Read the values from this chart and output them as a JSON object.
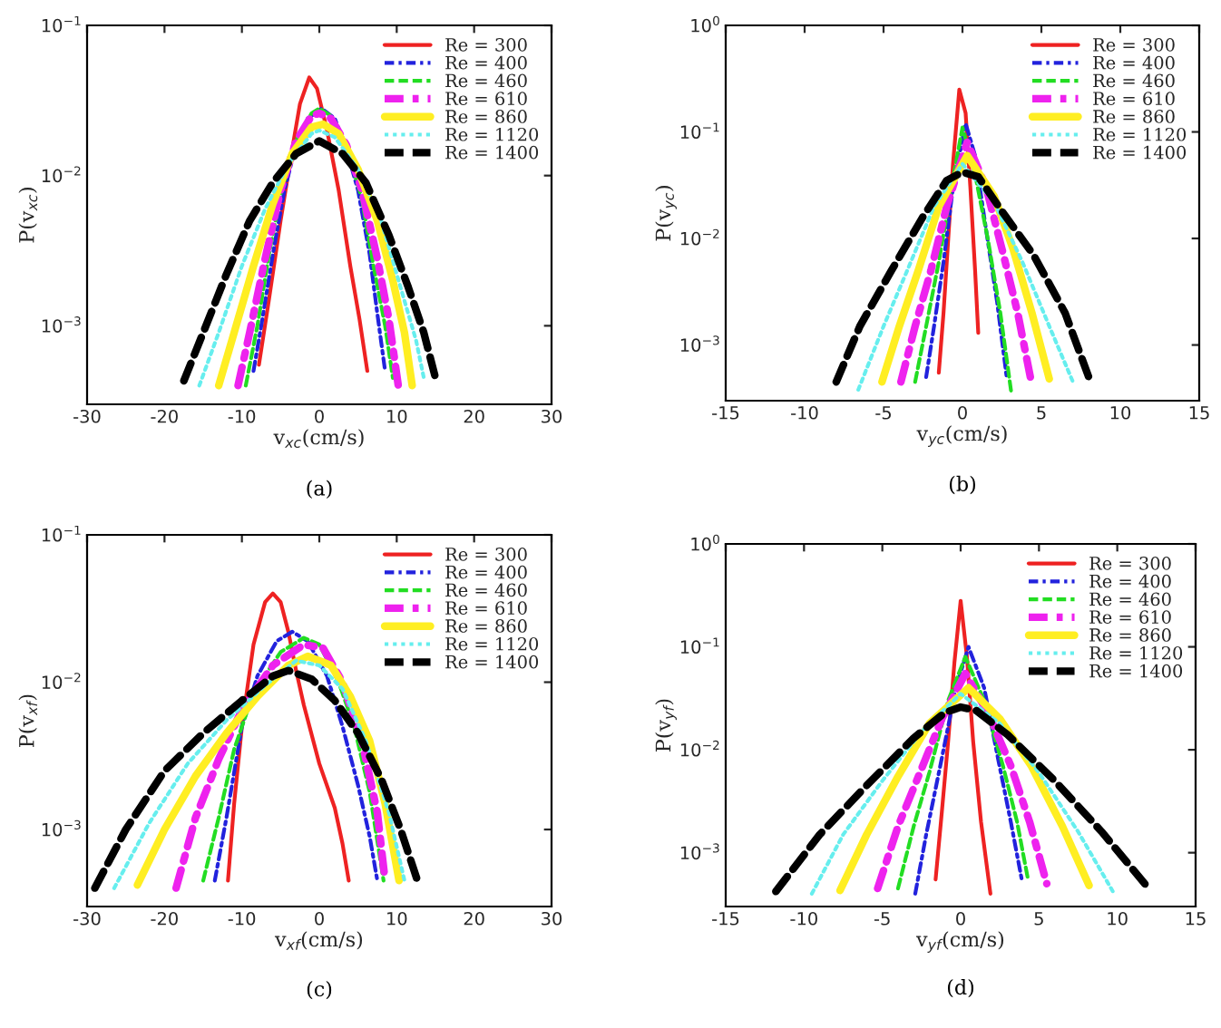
{
  "chart_data": [
    {
      "type": "line",
      "xlabel": "v$_{xc}$(cm/s)",
      "ylabel": "P(v$_{xc}$)",
      "annotations": [
        "(a)"
      ],
      "log": "y",
      "legend": "top right",
      "grid": false,
      "xlim": [
        -30,
        30
      ],
      "xticks": [
        -30,
        -20,
        -10,
        0,
        10,
        20,
        30
      ],
      "ylim": [
        0.0003,
        0.1
      ],
      "yticks": [
        {
          "value": 0.001,
          "label": "10$^{−3}$"
        },
        {
          "value": 0.01,
          "label": "10$^{−2}$"
        },
        {
          "value": 0.1,
          "label": "10$^{−1}$"
        }
      ],
      "series": [
        {
          "name": "Re = 300",
          "color": "#ee2222",
          "line_style": "solid",
          "x": [
            -7.8,
            -6.5,
            -5,
            -3.5,
            -2.5,
            -1.3,
            -0.3,
            1,
            2.5,
            4,
            5.2,
            6.2
          ],
          "values": [
            0.00055,
            0.0015,
            0.005,
            0.015,
            0.03,
            0.045,
            0.038,
            0.02,
            0.008,
            0.0025,
            0.0011,
            0.0005
          ]
        },
        {
          "name": "Re = 400",
          "color": "#2222dd",
          "line_style": "dashdot",
          "x": [
            -8.5,
            -7.5,
            -6,
            -4.5,
            -3,
            -1.5,
            0.3,
            2,
            3.5,
            5,
            6.5,
            7.5,
            8.5
          ],
          "values": [
            0.0005,
            0.001,
            0.003,
            0.008,
            0.016,
            0.024,
            0.028,
            0.024,
            0.015,
            0.008,
            0.003,
            0.0012,
            0.0005
          ]
        },
        {
          "name": "Re = 460",
          "color": "#22dd22",
          "line_style": "dashed",
          "x": [
            -9.5,
            -8,
            -6.5,
            -5,
            -3,
            -1,
            0,
            1.5,
            3.5,
            5.5,
            7,
            8.5,
            9.5
          ],
          "values": [
            0.0004,
            0.001,
            0.003,
            0.0075,
            0.017,
            0.026,
            0.028,
            0.025,
            0.016,
            0.007,
            0.0025,
            0.001,
            0.00045
          ]
        },
        {
          "name": "Re = 610",
          "color": "#ee22ee",
          "line_style": "dashdot",
          "x": [
            -10.5,
            -9,
            -7,
            -5,
            -3,
            -1,
            0,
            1.5,
            3.5,
            5.5,
            7.5,
            9,
            10.2
          ],
          "values": [
            0.0004,
            0.0009,
            0.0028,
            0.008,
            0.017,
            0.025,
            0.026,
            0.024,
            0.016,
            0.008,
            0.0028,
            0.0011,
            0.0004
          ]
        },
        {
          "name": "Re = 860",
          "color": "#ffee22",
          "line_style": "solid",
          "x": [
            -13,
            -11,
            -8.5,
            -6,
            -3.5,
            -1,
            0.5,
            2.5,
            5,
            7.5,
            9.5,
            11,
            12
          ],
          "values": [
            0.0004,
            0.0009,
            0.0025,
            0.0065,
            0.014,
            0.021,
            0.022,
            0.019,
            0.011,
            0.005,
            0.002,
            0.0009,
            0.0004
          ]
        },
        {
          "name": "Re = 1120",
          "color": "#66eeee",
          "line_style": "dotted",
          "x": [
            -15.5,
            -13,
            -10,
            -7,
            -4,
            -1,
            0,
            2,
            5,
            8,
            10.5,
            12.5,
            13.5
          ],
          "values": [
            0.0004,
            0.0009,
            0.0025,
            0.006,
            0.012,
            0.019,
            0.02,
            0.018,
            0.011,
            0.005,
            0.0018,
            0.0008,
            0.00045
          ]
        },
        {
          "name": "Re = 1400",
          "color": "#000000",
          "line_style": "dashed",
          "x": [
            -17.5,
            -15,
            -12,
            -9,
            -6,
            -3,
            0,
            3,
            6,
            9,
            11.5,
            13.5,
            15
          ],
          "values": [
            0.00043,
            0.0009,
            0.0022,
            0.005,
            0.009,
            0.014,
            0.017,
            0.014,
            0.009,
            0.004,
            0.0018,
            0.0009,
            0.00045
          ]
        }
      ]
    },
    {
      "type": "line",
      "xlabel": "v$_{yc}$(cm/s)",
      "ylabel": "P(v$_{yc}$)",
      "annotations": [
        "(b)"
      ],
      "log": "y",
      "legend": "top right",
      "grid": false,
      "xlim": [
        -15,
        15
      ],
      "xticks": [
        -15,
        -10,
        -5,
        0,
        5,
        10,
        15
      ],
      "ylim": [
        0.0003,
        1
      ],
      "yticks": [
        {
          "value": 0.001,
          "label": "10$^{−3}$"
        },
        {
          "value": 0.01,
          "label": "10$^{−2}$"
        },
        {
          "value": 0.1,
          "label": "10$^{−1}$"
        },
        {
          "value": 1,
          "label": "10$^{0}$"
        }
      ],
      "series": [
        {
          "name": "Re = 300",
          "color": "#ee2222",
          "line_style": "solid",
          "x": [
            -1.5,
            -1.2,
            -0.9,
            -0.6,
            -0.2,
            0.2,
            0.5,
            0.8,
            1.0
          ],
          "values": [
            0.00055,
            0.002,
            0.01,
            0.05,
            0.25,
            0.15,
            0.03,
            0.005,
            0.0013
          ]
        },
        {
          "name": "Re = 400",
          "color": "#2222dd",
          "line_style": "dashdot",
          "x": [
            -2.3,
            -1.8,
            -1.2,
            -0.6,
            0.2,
            0.8,
            1.5,
            2.2,
            2.8
          ],
          "values": [
            0.0005,
            0.0015,
            0.006,
            0.03,
            0.12,
            0.06,
            0.012,
            0.0025,
            0.0005
          ]
        },
        {
          "name": "Re = 460",
          "color": "#22dd22",
          "line_style": "dashed",
          "x": [
            -3,
            -2.3,
            -1.5,
            -0.7,
            0,
            0.8,
            1.6,
            2.4,
            3.1
          ],
          "values": [
            0.00045,
            0.0015,
            0.006,
            0.03,
            0.11,
            0.04,
            0.01,
            0.002,
            0.00035
          ]
        },
        {
          "name": "Re = 610",
          "color": "#ee22ee",
          "line_style": "dashdot",
          "x": [
            -3.9,
            -3,
            -2,
            -1,
            0.3,
            1.5,
            2.5,
            3.5,
            4.3
          ],
          "values": [
            0.00045,
            0.0015,
            0.005,
            0.02,
            0.08,
            0.03,
            0.008,
            0.002,
            0.0005
          ]
        },
        {
          "name": "Re = 860",
          "color": "#ffee22",
          "line_style": "solid",
          "x": [
            -5.1,
            -4,
            -2.8,
            -1.5,
            0.3,
            2,
            3.2,
            4.4,
            5.5
          ],
          "values": [
            0.00045,
            0.0015,
            0.005,
            0.02,
            0.06,
            0.025,
            0.008,
            0.002,
            0.00048
          ]
        },
        {
          "name": "Re = 1120",
          "color": "#66eeee",
          "line_style": "dotted",
          "x": [
            -6.6,
            -5,
            -3.5,
            -1.8,
            0,
            2,
            3.8,
            5.5,
            7
          ],
          "values": [
            0.00038,
            0.0015,
            0.005,
            0.02,
            0.05,
            0.022,
            0.006,
            0.0015,
            0.00045
          ]
        },
        {
          "name": "Re = 1400",
          "color": "#000000",
          "line_style": "dashed",
          "x": [
            -8,
            -6.5,
            -4.5,
            -2.5,
            -1,
            0,
            1,
            2.5,
            4.5,
            6.5,
            8
          ],
          "values": [
            0.00045,
            0.0015,
            0.005,
            0.016,
            0.035,
            0.042,
            0.038,
            0.018,
            0.007,
            0.002,
            0.0005
          ]
        }
      ]
    },
    {
      "type": "line",
      "xlabel": "v$_{xf}$(cm/s)",
      "ylabel": "P(v$_{xf}$)",
      "annotations": [
        "(c)"
      ],
      "log": "y",
      "legend": "top right",
      "grid": false,
      "xlim": [
        -30,
        30
      ],
      "xticks": [
        -30,
        -20,
        -10,
        0,
        10,
        20,
        30
      ],
      "ylim": [
        0.0003,
        0.1
      ],
      "yticks": [
        {
          "value": 0.001,
          "label": "10$^{−3}$"
        },
        {
          "value": 0.01,
          "label": "10$^{−2}$"
        },
        {
          "value": 0.1,
          "label": "10$^{−1}$"
        }
      ],
      "series": [
        {
          "name": "Re = 300",
          "color": "#ee2222",
          "line_style": "solid",
          "x": [
            -11.8,
            -11,
            -10,
            -8.5,
            -7,
            -6,
            -5,
            -4,
            -3,
            -2,
            0,
            2,
            3,
            3.8
          ],
          "values": [
            0.00045,
            0.0015,
            0.005,
            0.018,
            0.035,
            0.04,
            0.035,
            0.022,
            0.012,
            0.007,
            0.0028,
            0.0014,
            0.0008,
            0.00045
          ]
        },
        {
          "name": "Re = 400",
          "color": "#2222dd",
          "line_style": "dashdot",
          "x": [
            -13.5,
            -12,
            -10,
            -8,
            -5.5,
            -3.5,
            -1.5,
            1,
            3,
            5,
            6.5,
            7.5
          ],
          "values": [
            0.00045,
            0.0012,
            0.005,
            0.011,
            0.019,
            0.022,
            0.019,
            0.011,
            0.005,
            0.002,
            0.0009,
            0.00045
          ]
        },
        {
          "name": "Re = 460",
          "color": "#22dd22",
          "line_style": "dashed",
          "x": [
            -15,
            -13,
            -11,
            -8.5,
            -5,
            -2,
            0,
            2.5,
            4.5,
            6.5,
            8.3
          ],
          "values": [
            0.00045,
            0.0012,
            0.0035,
            0.0085,
            0.016,
            0.02,
            0.018,
            0.01,
            0.005,
            0.0018,
            0.00045
          ]
        },
        {
          "name": "Re = 610",
          "color": "#ee22ee",
          "line_style": "dashdot",
          "x": [
            -18.5,
            -16,
            -13,
            -10,
            -6,
            -2,
            0.5,
            3,
            5.5,
            7.5,
            8.5
          ],
          "values": [
            0.0004,
            0.0012,
            0.003,
            0.0065,
            0.013,
            0.018,
            0.017,
            0.01,
            0.004,
            0.0013,
            0.00045
          ]
        },
        {
          "name": "Re = 860",
          "color": "#ffee22",
          "line_style": "solid",
          "x": [
            -23.5,
            -20,
            -16,
            -12,
            -8,
            -4,
            -1.5,
            1.5,
            4,
            6.5,
            8.5,
            10.3
          ],
          "values": [
            0.00042,
            0.001,
            0.0023,
            0.0045,
            0.008,
            0.013,
            0.015,
            0.013,
            0.008,
            0.004,
            0.0015,
            0.00045
          ]
        },
        {
          "name": "Re = 1120",
          "color": "#66eeee",
          "line_style": "dotted",
          "x": [
            -26.5,
            -22,
            -17,
            -12,
            -7,
            -3,
            0,
            3,
            6,
            9,
            11
          ],
          "values": [
            0.0004,
            0.0011,
            0.0028,
            0.0055,
            0.0095,
            0.014,
            0.013,
            0.009,
            0.004,
            0.0013,
            0.00045
          ]
        },
        {
          "name": "Re = 1400",
          "color": "#000000",
          "line_style": "dashed",
          "x": [
            -29,
            -25,
            -20,
            -15,
            -10,
            -6,
            -4,
            -1,
            2,
            5,
            8,
            10.5,
            12.8
          ],
          "values": [
            0.0004,
            0.001,
            0.0025,
            0.0045,
            0.0075,
            0.011,
            0.012,
            0.0105,
            0.0075,
            0.0045,
            0.0022,
            0.001,
            0.00043
          ]
        }
      ]
    },
    {
      "type": "line",
      "xlabel": "v$_{yf}$(cm/s)",
      "ylabel": "P(v$_{yf}$)",
      "annotations": [
        "(d)"
      ],
      "log": "y",
      "legend": "top right",
      "grid": false,
      "xlim": [
        -15,
        15
      ],
      "xticks": [
        -15,
        -10,
        -5,
        0,
        5,
        10,
        15
      ],
      "ylim": [
        0.0003,
        1
      ],
      "yticks": [
        {
          "value": 0.001,
          "label": "10$^{−3}$"
        },
        {
          "value": 0.01,
          "label": "10$^{−2}$"
        },
        {
          "value": 0.1,
          "label": "10$^{−1}$"
        },
        {
          "value": 1,
          "label": "10$^{0}$"
        }
      ],
      "series": [
        {
          "name": "Re = 300",
          "color": "#ee2222",
          "line_style": "solid",
          "x": [
            -1.6,
            -1.2,
            -0.8,
            -0.4,
            0,
            0.4,
            0.8,
            1.3,
            1.9
          ],
          "values": [
            0.00055,
            0.0025,
            0.012,
            0.07,
            0.28,
            0.08,
            0.012,
            0.002,
            0.0004
          ]
        },
        {
          "name": "Re = 400",
          "color": "#2222dd",
          "line_style": "dashdot",
          "x": [
            -2.9,
            -2.2,
            -1.3,
            -0.3,
            0.5,
            1.5,
            2.4,
            3.2,
            3.9
          ],
          "values": [
            0.0004,
            0.0015,
            0.007,
            0.04,
            0.1,
            0.04,
            0.008,
            0.002,
            0.00055
          ]
        },
        {
          "name": "Re = 460",
          "color": "#22dd22",
          "line_style": "dashed",
          "x": [
            -4,
            -3,
            -2,
            -0.8,
            0.3,
            1.5,
            2.7,
            3.6,
            4.3
          ],
          "values": [
            0.00045,
            0.0018,
            0.006,
            0.03,
            0.08,
            0.03,
            0.007,
            0.002,
            0.00055
          ]
        },
        {
          "name": "Re = 610",
          "color": "#ee22ee",
          "line_style": "dashdot",
          "x": [
            -5.3,
            -4,
            -2.6,
            -1.2,
            0.3,
            1.8,
            3.2,
            4.4,
            5.5
          ],
          "values": [
            0.00045,
            0.0018,
            0.006,
            0.02,
            0.055,
            0.022,
            0.007,
            0.002,
            0.0005
          ]
        },
        {
          "name": "Re = 860",
          "color": "#ffee22",
          "line_style": "solid",
          "x": [
            -7.7,
            -6,
            -4,
            -2,
            0.5,
            2.5,
            4.5,
            6.5,
            8.2
          ],
          "values": [
            0.00043,
            0.0015,
            0.0055,
            0.018,
            0.04,
            0.02,
            0.007,
            0.0018,
            0.00048
          ]
        },
        {
          "name": "Re = 1120",
          "color": "#66eeee",
          "line_style": "dotted",
          "x": [
            -9.5,
            -7.5,
            -5,
            -2.5,
            0,
            2.5,
            5,
            7.5,
            9.8
          ],
          "values": [
            0.0004,
            0.0015,
            0.005,
            0.015,
            0.035,
            0.018,
            0.006,
            0.0016,
            0.0004
          ]
        },
        {
          "name": "Re = 1400",
          "color": "#000000",
          "line_style": "dashed",
          "x": [
            -11.8,
            -9,
            -6,
            -3,
            -1,
            0,
            1,
            3,
            6,
            9,
            12
          ],
          "values": [
            0.00042,
            0.0015,
            0.0045,
            0.013,
            0.023,
            0.026,
            0.024,
            0.014,
            0.005,
            0.0016,
            0.00045
          ]
        }
      ]
    }
  ]
}
